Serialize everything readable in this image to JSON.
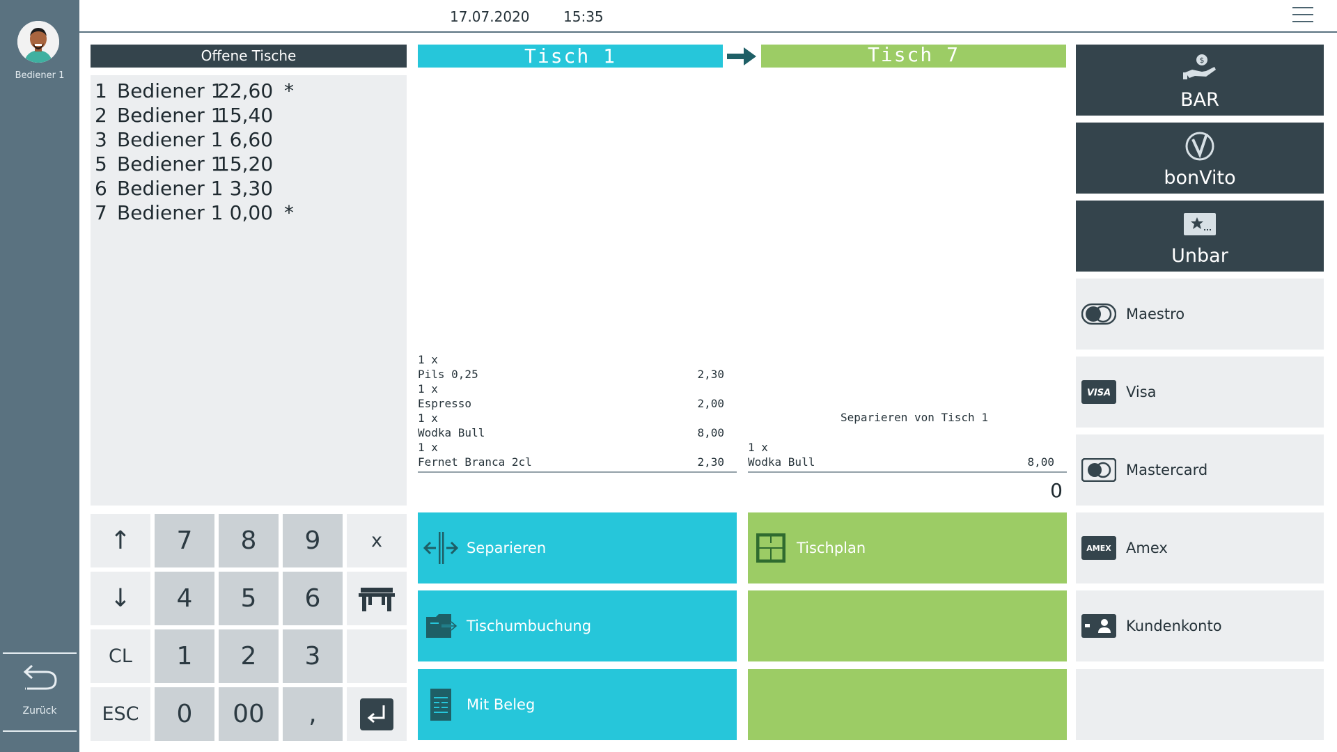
{
  "sidebar": {
    "user_name": "Bediener 1",
    "back_label": "Zurück"
  },
  "header": {
    "date": "17.07.2020",
    "time": "15:35"
  },
  "open_tables": {
    "title": "Offene Tische",
    "rows": [
      {
        "table": "1",
        "waiter": "Bediener 1",
        "amount": "22,60",
        "mark": "*"
      },
      {
        "table": "2",
        "waiter": "Bediener 1",
        "amount": "15,40",
        "mark": ""
      },
      {
        "table": "3",
        "waiter": "Bediener 1",
        "amount": "6,60",
        "mark": ""
      },
      {
        "table": "5",
        "waiter": "Bediener 1",
        "amount": "15,20",
        "mark": ""
      },
      {
        "table": "6",
        "waiter": "Bediener 1",
        "amount": "3,30",
        "mark": ""
      },
      {
        "table": "7",
        "waiter": "Bediener 1",
        "amount": "0,00",
        "mark": "*"
      }
    ]
  },
  "keypad": {
    "up": "↑",
    "down": "↓",
    "clear": "CL",
    "escape": "ESC",
    "multiply": "x",
    "digits": {
      "seven": "7",
      "eight": "8",
      "nine": "9",
      "four": "4",
      "five": "5",
      "six": "6",
      "one": "1",
      "two": "2",
      "three": "3",
      "zero": "0",
      "double_zero": "00",
      "comma": ","
    }
  },
  "transfer": {
    "source_title": "Tisch 1",
    "target_title": "Tisch 7",
    "source_items": [
      {
        "qty": "1 x",
        "name": "Pils 0,25",
        "price": "2,30"
      },
      {
        "qty": "1 x",
        "name": "Espresso",
        "price": "2,00"
      },
      {
        "qty": "1 x",
        "name": "Wodka Bull",
        "price": "8,00"
      },
      {
        "qty": "1 x",
        "name": "Fernet Branca 2cl",
        "price": "2,30"
      }
    ],
    "target_note": "Separieren von Tisch 1",
    "target_items": [
      {
        "qty": "1 x",
        "name": "Wodka Bull",
        "price": "8,00"
      }
    ],
    "target_total": "0"
  },
  "actions": {
    "separate": "Separieren",
    "rebook": "Tischumbuchung",
    "with_receipt": "Mit Beleg",
    "table_plan": "Tischplan"
  },
  "payments": {
    "cash": "BAR",
    "bonvito": "bonVito",
    "non_cash": "Unbar",
    "maestro": "Maestro",
    "visa": "Visa",
    "visa_logo": "VISA",
    "mastercard": "Mastercard",
    "amex": "Amex",
    "amex_logo": "AMEX",
    "customer_account": "Kundenkonto"
  },
  "colors": {
    "rail": "#5a7280",
    "dark_panel": "#34444c",
    "cyan": "#26c6da",
    "green": "#9ccc65",
    "light_panel": "#eceef0",
    "key_gray": "#cbd1d5"
  }
}
